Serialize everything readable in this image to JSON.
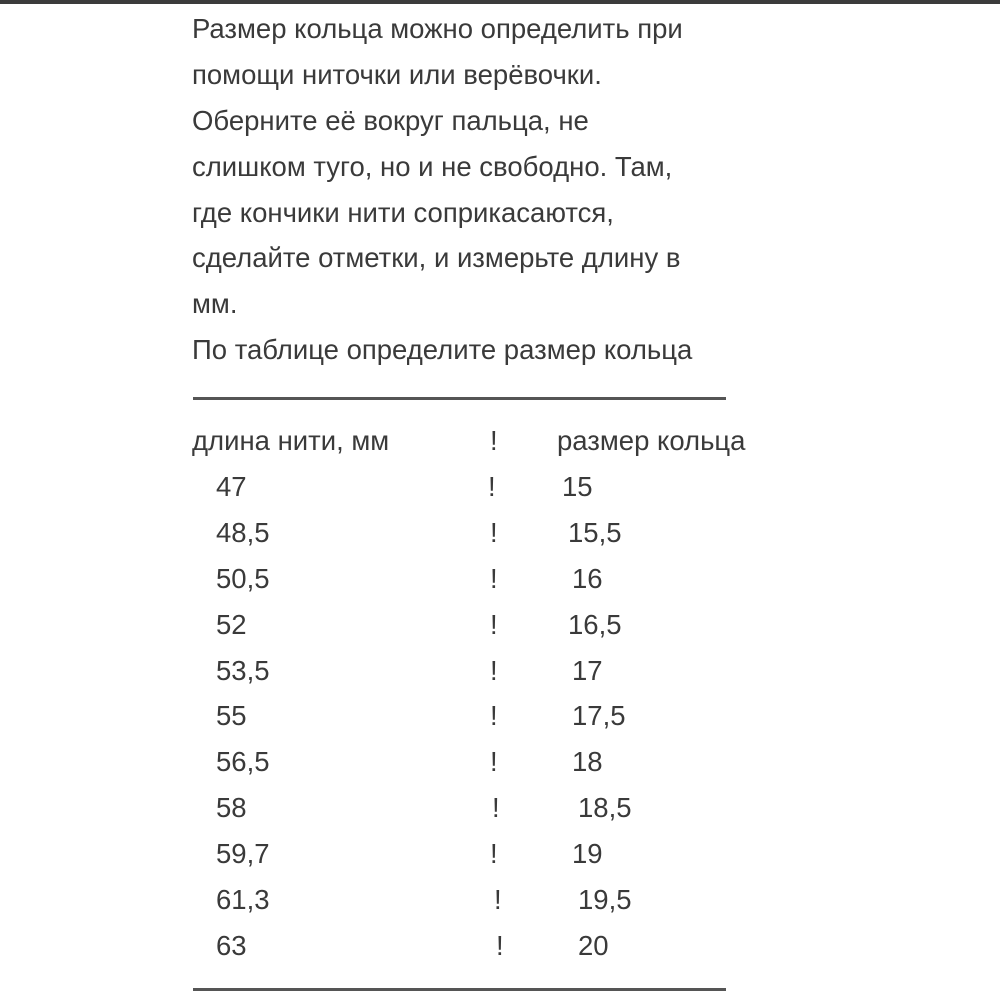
{
  "paragraph": [
    "Размер кольца можно определить при",
    "помощи ниточки или верёвочки.",
    "Оберните её вокруг пальца, не",
    "слишком туго, но и не свободно. Там,",
    "где кончики нити соприкасаются,",
    "сделайте отметки, и измерьте длину в",
    "мм.",
    "По таблице определите размер кольца"
  ],
  "table": {
    "headers": [
      "длина нити, мм",
      "!",
      "размер кольца"
    ],
    "rows": [
      [
        "47",
        "!",
        "15"
      ],
      [
        "48,5",
        "!",
        "15,5"
      ],
      [
        "50,5",
        "!",
        "16"
      ],
      [
        "52",
        "!",
        "16,5"
      ],
      [
        "53,5",
        "!",
        "17"
      ],
      [
        "55",
        "!",
        "17,5"
      ],
      [
        "56,5",
        "!",
        "18"
      ],
      [
        "58",
        "!",
        "18,5"
      ],
      [
        "59,7",
        "!",
        "19"
      ],
      [
        "61,3",
        "!",
        "19,5"
      ],
      [
        "63",
        "!",
        "20"
      ]
    ]
  }
}
